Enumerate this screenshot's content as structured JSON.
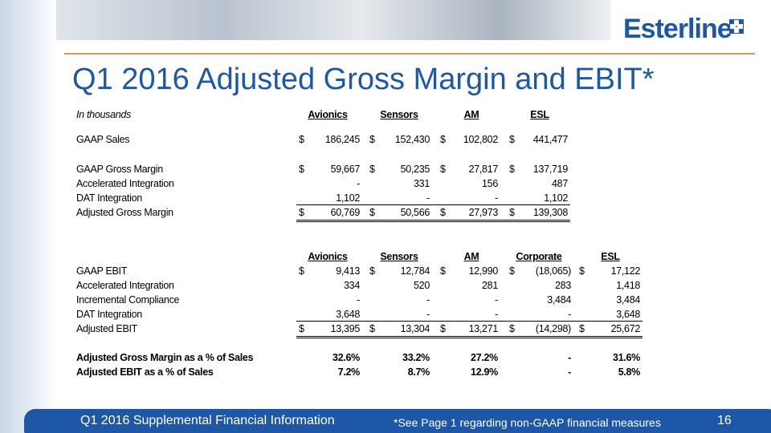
{
  "header": {
    "logo": "Esterline",
    "title": "Q1 2016 Adjusted Gross Margin and EBIT*"
  },
  "table1": {
    "unit_label": "In thousands",
    "columns": [
      "Avionics",
      "Sensors",
      "AM",
      "ESL"
    ],
    "rows": [
      {
        "label": "GAAP Sales",
        "currency": "$",
        "values": [
          "186,245",
          "152,430",
          "102,802",
          "441,477"
        ]
      },
      {
        "label": "GAAP Gross Margin",
        "currency": "$",
        "values": [
          "59,667",
          "50,235",
          "27,817",
          "137,719"
        ]
      },
      {
        "label": "Accelerated Integration",
        "values": [
          "-",
          "331",
          "156",
          "487"
        ]
      },
      {
        "label": "DAT Integration",
        "values": [
          "1,102",
          "-",
          "-",
          "1,102"
        ]
      },
      {
        "label": "Adjusted Gross Margin",
        "currency": "$",
        "values": [
          "60,769",
          "50,566",
          "27,973",
          "139,308"
        ]
      }
    ]
  },
  "table2": {
    "columns": [
      "Avionics",
      "Sensors",
      "AM",
      "Corporate",
      "ESL"
    ],
    "rows": [
      {
        "label": "GAAP EBIT",
        "currency": "$",
        "values": [
          "9,413",
          "12,784",
          "12,990",
          "(18,065)",
          "17,122"
        ]
      },
      {
        "label": "Accelerated Integration",
        "values": [
          "334",
          "520",
          "281",
          "283",
          "1,418"
        ]
      },
      {
        "label": "Incremental Compliance",
        "values": [
          "-",
          "-",
          "-",
          "3,484",
          "3,484"
        ]
      },
      {
        "label": "DAT Integration",
        "values": [
          "3,648",
          "-",
          "-",
          "-",
          "3,648"
        ]
      },
      {
        "label": "Adjusted EBIT",
        "currency": "$",
        "values": [
          "13,395",
          "13,304",
          "13,271",
          "(14,298)",
          "25,672"
        ]
      }
    ],
    "ratios": [
      {
        "label": "Adjusted Gross Margin as a % of Sales",
        "values": [
          "32.6%",
          "33.2%",
          "27.2%",
          "-",
          "31.6%"
        ]
      },
      {
        "label": "Adjusted EBIT as a % of Sales",
        "values": [
          "7.2%",
          "8.7%",
          "12.9%",
          "-",
          "5.8%"
        ]
      }
    ]
  },
  "footer": {
    "left": "Q1 2016 Supplemental Financial Information",
    "note": "*See Page 1 regarding non-GAAP financial measures",
    "page": "16"
  }
}
